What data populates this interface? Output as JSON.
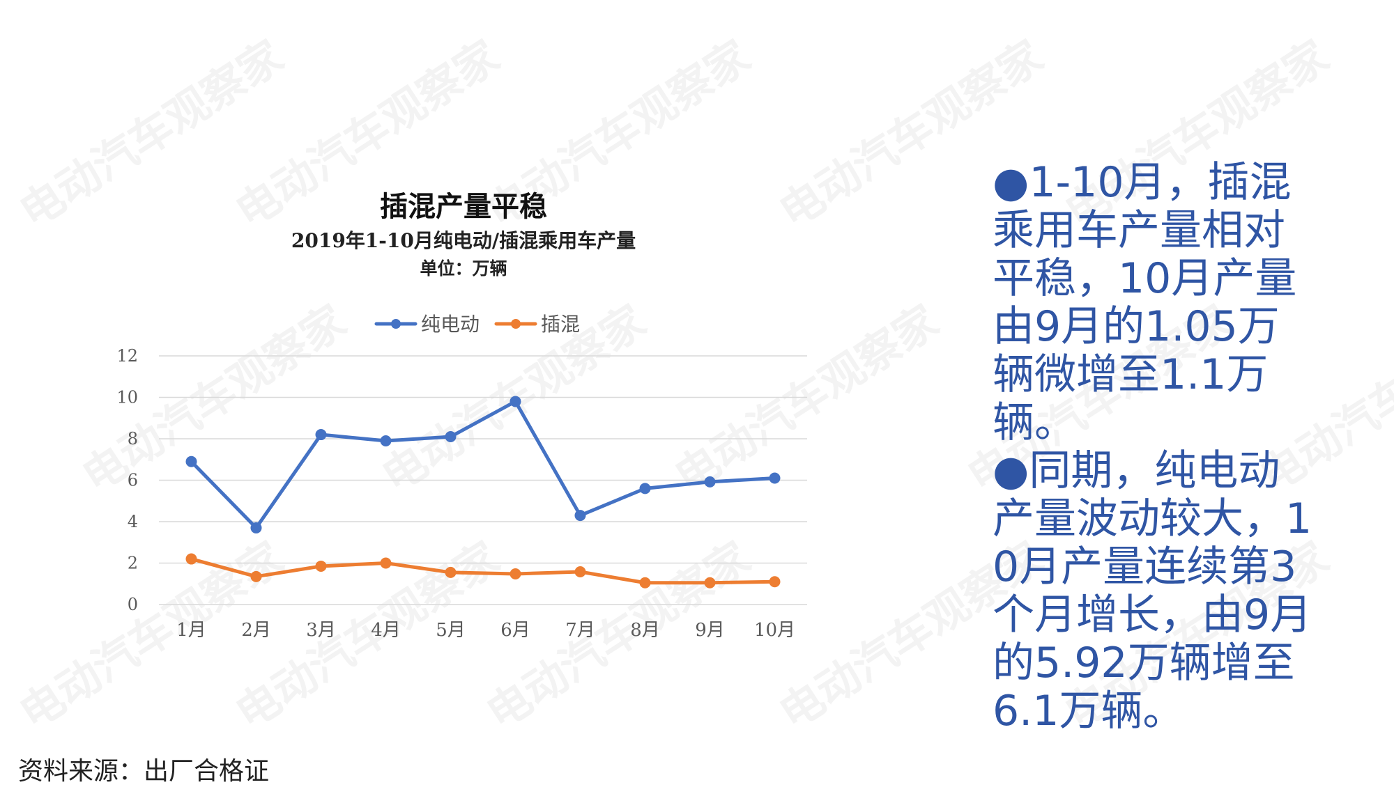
{
  "chart_data": {
    "type": "line",
    "title": "插混产量平稳",
    "subtitle": "2019年1-10月纯电动/插混乘用车产量",
    "unit": "单位：万辆",
    "categories": [
      "1月",
      "2月",
      "3月",
      "4月",
      "5月",
      "6月",
      "7月",
      "8月",
      "9月",
      "10月"
    ],
    "series": [
      {
        "name": "纯电动",
        "color": "#4472C4",
        "values": [
          6.9,
          3.7,
          8.2,
          7.9,
          8.1,
          9.8,
          4.3,
          5.6,
          5.92,
          6.1
        ]
      },
      {
        "name": "插混",
        "color": "#ED7D31",
        "values": [
          2.2,
          1.35,
          1.85,
          2.0,
          1.55,
          1.48,
          1.58,
          1.05,
          1.05,
          1.1
        ]
      }
    ],
    "ylim": [
      0,
      12
    ],
    "yticks": [
      0,
      2,
      4,
      6,
      8,
      10,
      12
    ],
    "grid": true,
    "legend": "top-center"
  },
  "summary": {
    "para1": "●1-10月，插混乘用车产量相对平稳，10月产量由9月的1.05万辆微增至1.1万辆。",
    "para2": "●同期，纯电动产量波动较大，10月产量连续第3个月增长，由9月的5.92万辆增至6.1万辆。"
  },
  "source": "资料来源：出厂合格证",
  "watermark": "电动汽车观察家",
  "colors": {
    "summary_text": "#2f55a4",
    "grid": "#d9d9d9",
    "axis_text": "#595959"
  }
}
